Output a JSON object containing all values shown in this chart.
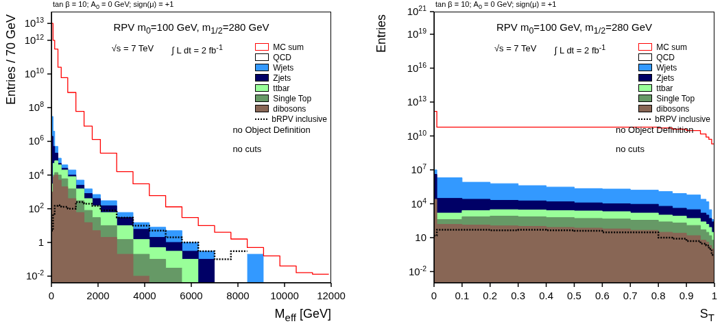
{
  "chart_data": [
    {
      "type": "area",
      "title": "tan β = 10; A$_{0}$ = 0 GeV; sign(μ) = +1",
      "xlabel": "M$_{eff}$ [GeV]",
      "ylabel": "Entries / 70 GeV",
      "annotations": [
        "RPV m$_{0}$=100 GeV, m$_{1/2}$=280 GeV",
        "√s = 7 TeV",
        "∫ L dt = 2 fb$^{-1}$",
        "no Object Definition",
        "no cuts"
      ],
      "x": [
        0,
        70,
        70,
        140,
        140,
        280,
        280,
        420,
        420,
        700,
        700,
        1050,
        1050,
        1400,
        1400,
        1750,
        1750,
        2100,
        2100,
        2800,
        2800,
        3500,
        3500,
        4200,
        4200,
        4900,
        4900,
        5600,
        5600,
        6300,
        6300,
        7000,
        7000,
        7700,
        7700,
        8400,
        8400,
        9100,
        9100,
        9800,
        9800,
        10500,
        10500,
        11200,
        11200,
        11900
      ],
      "series": [
        {
          "name": "MC sum",
          "type": "line",
          "color": "#ff0000",
          "values": [
            10000000000000.0,
            10000000000000.0,
            1000000000000.0,
            1000000000000.0,
            300000000000.0,
            300000000000.0,
            25000000000.0,
            25000000000.0,
            6000000000.0,
            6000000000.0,
            800000000.0,
            800000000.0,
            60000000.0,
            60000000.0,
            8000000.0,
            8000000.0,
            1300000.0,
            1300000.0,
            200000.0,
            200000.0,
            16000.0,
            16000.0,
            3000,
            3000,
            600,
            600,
            130,
            130,
            30,
            30,
            10,
            10,
            4,
            4,
            1.6,
            1.6,
            0.5,
            0.5,
            0.16,
            0.16,
            0.04,
            0.04,
            0.016,
            0.016,
            0.013,
            0.013
          ]
        },
        {
          "name": "QCD",
          "color": "#ffffff",
          "values": [
            null,
            null,
            null,
            null,
            null,
            null,
            null,
            null,
            null,
            null,
            null,
            null,
            null,
            null,
            null,
            null,
            null,
            null,
            null,
            null,
            null,
            null,
            null,
            null,
            null,
            null,
            null,
            null,
            null,
            null,
            null,
            null,
            null,
            null,
            null,
            null,
            null,
            null,
            null,
            null,
            null,
            null,
            null,
            null,
            null,
            null
          ]
        },
        {
          "name": "Wjets",
          "color": "#3399ff",
          "values": [
            30000000.0,
            30000000.0,
            4000000.0,
            4000000.0,
            500000.0,
            500000.0,
            100000.0,
            100000.0,
            40000.0,
            40000.0,
            20000.0,
            20000.0,
            5000,
            5000,
            1500,
            1500,
            700,
            700,
            300,
            300,
            60,
            60,
            15,
            15,
            8,
            8,
            5,
            5,
            1,
            1,
            0.3,
            0.3,
            null,
            null,
            null,
            null,
            0.2,
            0.2,
            null,
            null,
            null,
            null,
            null,
            null,
            null,
            null
          ]
        },
        {
          "name": "Zjets",
          "color": "#000066",
          "values": [
            2000000.0,
            2000000.0,
            500000.0,
            500000.0,
            200000.0,
            200000.0,
            50000.0,
            50000.0,
            25000.0,
            25000.0,
            10000.0,
            10000.0,
            2500,
            2500,
            800,
            800,
            400,
            400,
            150,
            150,
            30,
            30,
            6,
            6,
            2,
            2,
            1,
            1,
            0.3,
            0.3,
            0.1,
            0.1,
            null,
            null,
            null,
            null,
            null,
            null,
            null,
            null,
            null,
            null,
            null,
            null,
            null,
            null
          ]
        },
        {
          "name": "ttbar",
          "color": "#99ff99",
          "values": [
            3000,
            3000,
            50000.0,
            50000.0,
            70000.0,
            70000.0,
            40000.0,
            40000.0,
            20000.0,
            20000.0,
            8000,
            8000,
            1500,
            1500,
            400,
            400,
            150,
            150,
            60,
            60,
            10,
            10,
            1.5,
            1.5,
            0.5,
            0.5,
            0.3,
            0.3,
            0.1,
            0.1,
            null,
            null,
            null,
            null,
            null,
            null,
            null,
            null,
            null,
            null,
            null,
            null,
            null,
            null,
            null,
            null
          ]
        },
        {
          "name": "Single Top",
          "color": "#669966",
          "values": [
            null,
            null,
            10000.0,
            10000.0,
            14000.0,
            14000.0,
            10000.0,
            10000.0,
            6000,
            6000,
            1500,
            1500,
            300,
            300,
            80,
            80,
            30,
            30,
            10,
            10,
            1.5,
            1.5,
            0.2,
            0.2,
            0.1,
            0.1,
            0.03,
            0.03,
            null,
            null,
            null,
            null,
            null,
            null,
            null,
            null,
            null,
            null,
            null,
            null,
            null,
            null,
            null,
            null,
            null,
            null
          ]
        },
        {
          "name": "dibosons",
          "color": "#886655",
          "values": [
            1000,
            1000,
            8000,
            8000,
            10000.0,
            10000.0,
            5000,
            5000,
            2000,
            2000,
            400,
            400,
            60,
            60,
            15,
            15,
            5,
            5,
            2,
            2,
            0.2,
            0.2,
            0.01,
            0.01,
            null,
            null,
            null,
            null,
            null,
            null,
            null,
            null,
            null,
            null,
            null,
            null,
            null,
            null,
            null,
            null,
            null,
            null,
            null,
            null,
            null,
            null
          ]
        },
        {
          "name": "bRPV inclusive",
          "type": "line",
          "color": "#000000",
          "line_style": "dotted",
          "values": [
            5,
            5,
            50,
            50,
            150,
            150,
            160,
            160,
            130,
            130,
            100,
            100,
            250,
            250,
            200,
            200,
            150,
            150,
            80,
            80,
            30,
            30,
            10,
            10,
            5,
            5,
            2,
            2,
            1,
            1,
            0.3,
            0.3,
            0.1,
            0.1,
            0.3,
            0.3,
            null,
            null,
            null,
            null,
            null,
            null,
            null,
            null,
            null,
            null
          ]
        }
      ],
      "xlim": [
        0,
        12000
      ],
      "xticks": [
        0,
        2000,
        4000,
        6000,
        8000,
        10000,
        12000
      ],
      "ylim": [
        0.004,
        50000000000000.0
      ],
      "yticks": [
        {
          "value": 0.01,
          "label": "10$^{-2}$"
        },
        1,
        {
          "value": 100,
          "label": "10$^{2}$"
        },
        {
          "value": 10000,
          "label": "10$^{4}$"
        },
        {
          "value": 1000000.0,
          "label": "10$^{6}$"
        },
        {
          "value": 100000000.0,
          "label": "10$^{8}$"
        },
        {
          "value": 10000000000.0,
          "label": "10$^{10}$"
        },
        {
          "value": 1000000000000.0,
          "label": "10$^{12}$"
        },
        {
          "value": 10000000000000.0,
          "label": "10$^{13}$"
        }
      ],
      "log": true,
      "legend": "top right"
    },
    {
      "type": "area",
      "title": "tan β = 10; A$_{0}$ = 0 GeV; sign(μ) = +1",
      "xlabel": "S$_{T}$",
      "ylabel": "Entries",
      "annotations": [
        "RPV m$_{0}$=100 GeV, m$_{1/2}$=280 GeV",
        "√s = 7 TeV",
        "∫ L dt = 2 fb$^{-1}$",
        "no Object Definition",
        "no cuts"
      ],
      "x": [
        0,
        0.01,
        0.01,
        0.1,
        0.1,
        0.2,
        0.2,
        0.3,
        0.3,
        0.4,
        0.4,
        0.5,
        0.5,
        0.6,
        0.6,
        0.7,
        0.7,
        0.8,
        0.8,
        0.85,
        0.85,
        0.9,
        0.9,
        0.95,
        0.95,
        0.97,
        0.97,
        0.98,
        0.98,
        0.99,
        0.99,
        1
      ],
      "series": [
        {
          "name": "MC sum",
          "type": "line",
          "color": "#ff0000",
          "values": [
            1500000000000.0,
            1500000000000.0,
            60000000000.0,
            60000000000.0,
            60000000000.0,
            60000000000.0,
            60000000000.0,
            60000000000.0,
            60000000000.0,
            60000000000.0,
            60000000000.0,
            60000000000.0,
            60000000000.0,
            60000000000.0,
            60000000000.0,
            60000000000.0,
            60000000000.0,
            60000000000.0,
            50000000000.0,
            50000000000.0,
            40000000000.0,
            40000000000.0,
            30000000000.0,
            30000000000.0,
            15000000000.0,
            15000000000.0,
            8000000000.0,
            8000000000.0,
            5000000000.0,
            5000000000.0,
            2000000000.0,
            2000000000.0
          ]
        },
        {
          "name": "QCD",
          "color": "#ffffff",
          "values": [
            null,
            null,
            null,
            null,
            null,
            null,
            null,
            null,
            null,
            null,
            null,
            null,
            null,
            null,
            null,
            null,
            null,
            null,
            null,
            null,
            null,
            null,
            null,
            null,
            null,
            null,
            null,
            null,
            null,
            null,
            null,
            null
          ]
        },
        {
          "name": "Wjets",
          "color": "#3399ff",
          "values": [
            10000000.0,
            10000000.0,
            2000000.0,
            2000000.0,
            800000.0,
            800000.0,
            600000.0,
            600000.0,
            400000.0,
            400000.0,
            300000.0,
            300000.0,
            220000.0,
            220000.0,
            200000.0,
            200000.0,
            160000.0,
            160000.0,
            120000.0,
            120000.0,
            80000.0,
            80000.0,
            60000.0,
            60000.0,
            25000.0,
            25000.0,
            15000.0,
            15000.0,
            3000,
            3000,
            400,
            400
          ]
        },
        {
          "name": "Zjets",
          "color": "#000066",
          "values": [
            4000000.0,
            4000000.0,
            30000.0,
            30000.0,
            25000.0,
            25000.0,
            20000.0,
            20000.0,
            18000.0,
            18000.0,
            15000.0,
            15000.0,
            12000.0,
            12000.0,
            10000.0,
            10000.0,
            9000,
            9000,
            6000,
            6000,
            4000,
            4000,
            3000,
            3000,
            1500,
            1500,
            1000,
            1000,
            500,
            500,
            250,
            250
          ]
        },
        {
          "name": "ttbar",
          "color": "#99ff99",
          "values": [
            null,
            null,
            1500,
            1500,
            2500,
            2500,
            3000,
            3000,
            2800,
            2800,
            2500,
            2500,
            2300,
            2300,
            2000,
            2000,
            1500,
            1500,
            1000,
            1000,
            800,
            800,
            500,
            500,
            250,
            250,
            150,
            150,
            80,
            80,
            30,
            30
          ]
        },
        {
          "name": "Single Top",
          "color": "#669966",
          "values": [
            null,
            null,
            400,
            400,
            700,
            700,
            800,
            800,
            700,
            700,
            600,
            600,
            500,
            500,
            450,
            450,
            350,
            350,
            250,
            250,
            200,
            200,
            120,
            120,
            50,
            50,
            30,
            30,
            15,
            15,
            6,
            6
          ]
        },
        {
          "name": "dibosons",
          "color": "#886655",
          "values": [
            25000.0,
            25000.0,
            150,
            150,
            130,
            130,
            110,
            110,
            100,
            100,
            80,
            80,
            70,
            70,
            60,
            60,
            45,
            45,
            30,
            30,
            25,
            25,
            15,
            15,
            6,
            6,
            4,
            4,
            2,
            2,
            1,
            1
          ]
        },
        {
          "name": "bRPV inclusive",
          "type": "line",
          "color": "#000000",
          "line_style": "dotted",
          "values": [
            15,
            15,
            50,
            50,
            50,
            50,
            45,
            45,
            50,
            50,
            45,
            45,
            40,
            40,
            30,
            30,
            30,
            30,
            10,
            10,
            8,
            8,
            5,
            5,
            3,
            3,
            2,
            2,
            1,
            1,
            0.3,
            0.3
          ]
        }
      ],
      "xlim": [
        0,
        1
      ],
      "xticks": [
        0,
        0.1,
        0.2,
        0.3,
        0.4,
        0.5,
        0.6,
        0.7,
        0.8,
        0.9,
        1
      ],
      "ylim": [
        0.001,
        1e+21
      ],
      "yticks": [
        {
          "value": 0.01,
          "label": "10$^{-2}$"
        },
        10,
        {
          "value": 10000,
          "label": "10$^{4}$"
        },
        {
          "value": 10000000.0,
          "label": "10$^{7}$"
        },
        {
          "value": 10000000000.0,
          "label": "10$^{10}$"
        },
        {
          "value": 10000000000000.0,
          "label": "10$^{13}$"
        },
        {
          "value": 1e+16,
          "label": "10$^{16}$"
        },
        {
          "value": 1e+19,
          "label": "10$^{19}$"
        },
        {
          "value": 1e+21,
          "label": "10$^{21}$"
        }
      ],
      "log": true,
      "legend": "top right"
    }
  ]
}
